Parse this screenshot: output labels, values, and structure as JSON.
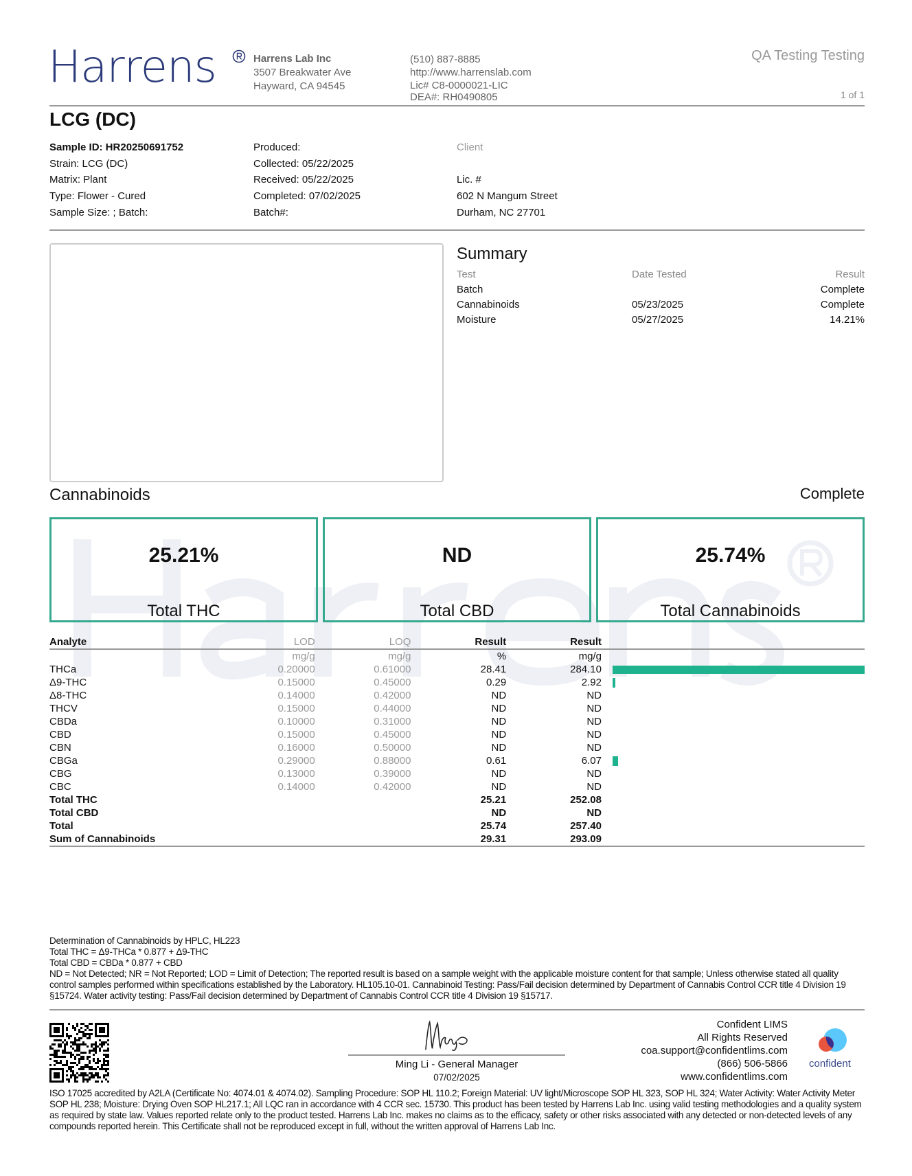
{
  "lab": {
    "logo": "Harrens",
    "name": "Harrens Lab Inc",
    "address1": "3507 Breakwater Ave",
    "address2": "Hayward, CA 94545",
    "phone": "(510) 887-8885",
    "website": "http://www.harrenslab.com",
    "license": "Lic# C8-0000021-LIC",
    "dea": "DEA#: RH0490805"
  },
  "header": {
    "client_name": "QA Testing Testing",
    "page": "1 of 1"
  },
  "title": "LCG (DC)",
  "sample": {
    "col1": [
      "Sample ID: HR20250691752",
      "Strain: LCG (DC)",
      "Matrix: Plant",
      "Type: Flower - Cured",
      "Sample Size: ; Batch:"
    ],
    "col2": [
      "Produced:",
      "Collected: 05/22/2025",
      "Received: 05/22/2025",
      "Completed: 07/02/2025",
      "Batch#:"
    ],
    "client": {
      "label": "Client",
      "lic": "Lic. #",
      "address1": "602 N Mangum Street",
      "address2": "Durham, NC 27701"
    }
  },
  "summary": {
    "title": "Summary",
    "headers": [
      "Test",
      "Date Tested",
      "Result"
    ],
    "rows": [
      [
        "Batch",
        "",
        "Complete"
      ],
      [
        "Cannabinoids",
        "05/23/2025",
        "Complete"
      ],
      [
        "Moisture",
        "05/27/2025",
        "14.21%"
      ]
    ]
  },
  "cannabinoids": {
    "title": "Cannabinoids",
    "status": "Complete",
    "totals": [
      {
        "value": "25.21%",
        "label": "Total THC"
      },
      {
        "value": "ND",
        "label": "Total CBD"
      },
      {
        "value": "25.74%",
        "label": "Total Cannabinoids"
      }
    ],
    "headers": [
      "Analyte",
      "LOD",
      "LOQ",
      "Result",
      "Result"
    ],
    "units": [
      "",
      "mg/g",
      "mg/g",
      "%",
      "mg/g"
    ],
    "bar_color": "#1fb28e",
    "rows": [
      {
        "analyte": "THCa",
        "lod": "0.20000",
        "loq": "0.61000",
        "pct": "28.41",
        "mgg": "284.10",
        "bar": 284.1
      },
      {
        "analyte": "Δ9-THC",
        "lod": "0.15000",
        "loq": "0.45000",
        "pct": "0.29",
        "mgg": "2.92",
        "bar": 2.92
      },
      {
        "analyte": "Δ8-THC",
        "lod": "0.14000",
        "loq": "0.42000",
        "pct": "ND",
        "mgg": "ND",
        "bar": 0
      },
      {
        "analyte": "THCV",
        "lod": "0.15000",
        "loq": "0.44000",
        "pct": "ND",
        "mgg": "ND",
        "bar": 0
      },
      {
        "analyte": "CBDa",
        "lod": "0.10000",
        "loq": "0.31000",
        "pct": "ND",
        "mgg": "ND",
        "bar": 0
      },
      {
        "analyte": "CBD",
        "lod": "0.15000",
        "loq": "0.45000",
        "pct": "ND",
        "mgg": "ND",
        "bar": 0
      },
      {
        "analyte": "CBN",
        "lod": "0.16000",
        "loq": "0.50000",
        "pct": "ND",
        "mgg": "ND",
        "bar": 0
      },
      {
        "analyte": "CBGa",
        "lod": "0.29000",
        "loq": "0.88000",
        "pct": "0.61",
        "mgg": "6.07",
        "bar": 6.07
      },
      {
        "analyte": "CBG",
        "lod": "0.13000",
        "loq": "0.39000",
        "pct": "ND",
        "mgg": "ND",
        "bar": 0
      },
      {
        "analyte": "CBC",
        "lod": "0.14000",
        "loq": "0.42000",
        "pct": "ND",
        "mgg": "ND",
        "bar": 0
      }
    ],
    "total_rows": [
      {
        "analyte": "Total THC",
        "pct": "25.21",
        "mgg": "252.08"
      },
      {
        "analyte": "Total CBD",
        "pct": "ND",
        "mgg": "ND"
      },
      {
        "analyte": "Total",
        "pct": "25.74",
        "mgg": "257.40"
      },
      {
        "analyte": "Sum of Cannabinoids",
        "pct": "29.31",
        "mgg": "293.09"
      }
    ]
  },
  "notes": [
    "Determination of Cannabinoids by HPLC, HL223",
    "Total THC = Δ9-THCa * 0.877 + Δ9-THC",
    "Total CBD = CBDa * 0.877 + CBD",
    "ND = Not Detected; NR = Not Reported; LOD = Limit of Detection; The reported result is based on a sample weight with the applicable moisture content for that sample; Unless otherwise stated all quality control samples performed within specifications established by the Laboratory. HL105.10-01. Cannabinoid Testing: Pass/Fail decision determined by Department of Cannabis Control CCR title 4 Division 19 §15724. Water activity testing: Pass/Fail decision determined by Department of Cannabis Control CCR title 4 Division 19 §15717."
  ],
  "signature": {
    "name": "Ming Li - General Manager",
    "date": "07/02/2025"
  },
  "lims": {
    "lines": [
      "Confident LIMS",
      "All Rights Reserved",
      "coa.support@confidentlims.com",
      "(866) 506-5866",
      "www.confidentlims.com"
    ],
    "logo_text": "confident"
  },
  "disclaimer": "ISO 17025 accredited by A2LA (Certificate No: 4074.01 & 4074.02). Sampling Procedure: SOP HL 110.2; Foreign Material: UV light/Microscope SOP HL 323, SOP HL 324; Water Activity: Water Activity Meter SOP HL 238; Moisture: Drying Oven SOP HL217.1; All LQC ran in accordance with 4 CCR sec. 15730. This product has been tested by Harrens Lab Inc. using valid testing methodologies and a quality system as required by state law. Values reported relate only to the product tested. Harrens Lab Inc. makes no claims as to the efficacy, safety or other risks associated with any detected or non-detected levels of any compounds reported herein. This Certificate shall not be reproduced except in full, without the written approval of Harrens Lab Inc."
}
